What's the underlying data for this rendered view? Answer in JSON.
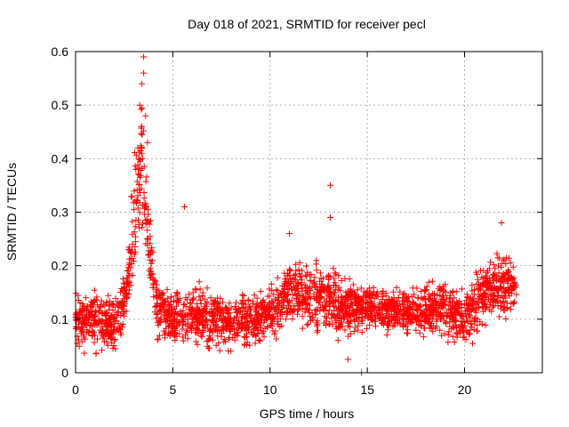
{
  "chart_data": {
    "type": "scatter",
    "title": "Day 018 of 2021, SRMTID for receiver pecl",
    "xlabel": "GPS time / hours",
    "ylabel": "SRMTID / TECUs",
    "xlim": [
      0,
      24
    ],
    "ylim": [
      0,
      0.6
    ],
    "xticks": [
      0,
      5,
      10,
      15,
      20
    ],
    "xtick_labels": [
      "0",
      "5",
      "10",
      "15",
      "20"
    ],
    "yticks": [
      0,
      0.1,
      0.2,
      0.3,
      0.4,
      0.5,
      0.6
    ],
    "ytick_labels": [
      "0",
      "0.1",
      "0.2",
      "0.3",
      "0.4",
      "0.5",
      "0.6"
    ],
    "grid": true,
    "marker": "+",
    "marker_color": "#ff0000",
    "series": [
      {
        "name": "SRMTID",
        "envelope": [
          {
            "x": 0.0,
            "center": 0.1,
            "spread": 0.06
          },
          {
            "x": 1.0,
            "center": 0.1,
            "spread": 0.07
          },
          {
            "x": 2.0,
            "center": 0.09,
            "spread": 0.06
          },
          {
            "x": 2.6,
            "center": 0.14,
            "spread": 0.08
          },
          {
            "x": 3.0,
            "center": 0.28,
            "spread": 0.12
          },
          {
            "x": 3.4,
            "center": 0.4,
            "spread": 0.18
          },
          {
            "x": 3.7,
            "center": 0.25,
            "spread": 0.12
          },
          {
            "x": 4.2,
            "center": 0.12,
            "spread": 0.07
          },
          {
            "x": 5.0,
            "center": 0.1,
            "spread": 0.06
          },
          {
            "x": 6.0,
            "center": 0.11,
            "spread": 0.07
          },
          {
            "x": 8.0,
            "center": 0.09,
            "spread": 0.06
          },
          {
            "x": 10.0,
            "center": 0.11,
            "spread": 0.06
          },
          {
            "x": 11.0,
            "center": 0.15,
            "spread": 0.07
          },
          {
            "x": 12.5,
            "center": 0.14,
            "spread": 0.08
          },
          {
            "x": 13.5,
            "center": 0.12,
            "spread": 0.07
          },
          {
            "x": 15.0,
            "center": 0.12,
            "spread": 0.05
          },
          {
            "x": 17.0,
            "center": 0.11,
            "spread": 0.05
          },
          {
            "x": 19.0,
            "center": 0.12,
            "spread": 0.06
          },
          {
            "x": 20.0,
            "center": 0.1,
            "spread": 0.06
          },
          {
            "x": 21.0,
            "center": 0.15,
            "spread": 0.07
          },
          {
            "x": 22.0,
            "center": 0.16,
            "spread": 0.07
          },
          {
            "x": 22.7,
            "center": 0.16,
            "spread": 0.05
          }
        ],
        "notable_points": [
          {
            "x": 3.5,
            "y": 0.59
          },
          {
            "x": 3.5,
            "y": 0.56
          },
          {
            "x": 3.4,
            "y": 0.54
          },
          {
            "x": 3.3,
            "y": 0.5
          },
          {
            "x": 3.6,
            "y": 0.48
          },
          {
            "x": 3.4,
            "y": 0.46
          },
          {
            "x": 3.2,
            "y": 0.42
          },
          {
            "x": 3.7,
            "y": 0.43
          },
          {
            "x": 3.1,
            "y": 0.38
          },
          {
            "x": 5.6,
            "y": 0.31
          },
          {
            "x": 13.1,
            "y": 0.35
          },
          {
            "x": 13.1,
            "y": 0.29
          },
          {
            "x": 14.7,
            "y": 0.0
          },
          {
            "x": 14.0,
            "y": 0.025
          },
          {
            "x": 21.9,
            "y": 0.28
          },
          {
            "x": 11.0,
            "y": 0.26
          }
        ]
      }
    ]
  }
}
